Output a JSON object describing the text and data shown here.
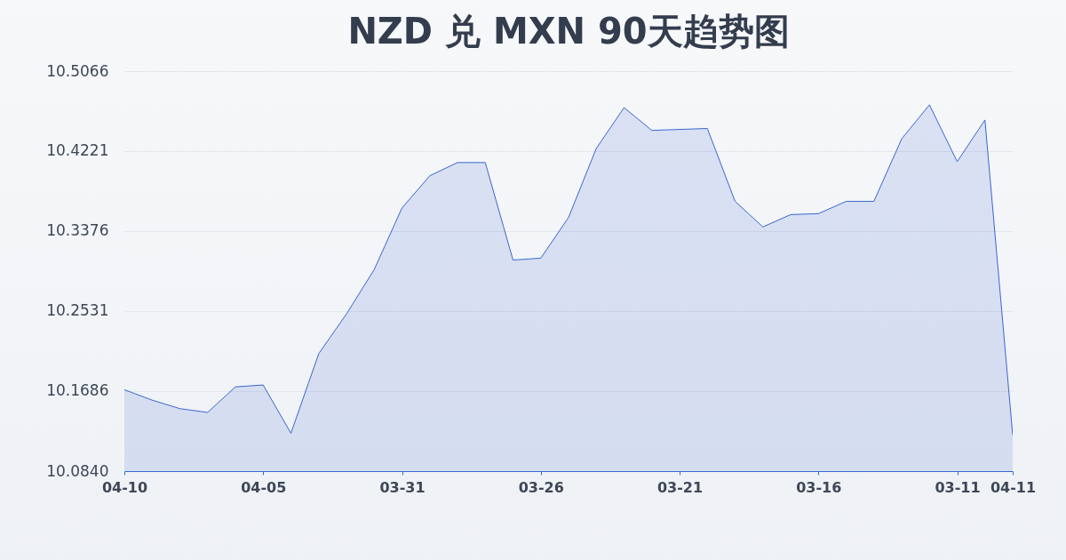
{
  "chart_data": {
    "type": "area",
    "title": "NZD 兑 MXN 90天趋势图",
    "categories": [
      "04-10",
      null,
      null,
      null,
      null,
      "04-05",
      null,
      null,
      null,
      null,
      "03-31",
      null,
      null,
      null,
      null,
      "03-26",
      null,
      null,
      null,
      null,
      "03-21",
      null,
      null,
      null,
      null,
      "03-16",
      null,
      null,
      null,
      null,
      "03-11",
      null,
      "04-11"
    ],
    "series": [
      {
        "color": "#3a66d0",
        "values": [
          10.17,
          10.159,
          10.15,
          10.146,
          10.173,
          10.175,
          10.124,
          10.208,
          10.25,
          10.297,
          10.362,
          10.396,
          10.41,
          10.41,
          10.307,
          10.309,
          10.352,
          10.425,
          10.468,
          10.444,
          10.445,
          10.446,
          10.369,
          10.342,
          10.355,
          10.356,
          10.369,
          10.369,
          10.435,
          10.471,
          10.411,
          10.455,
          10.122
        ]
      }
    ],
    "ylim": [
      10.084,
      10.5066
    ],
    "yticks": [
      {
        "value": 10.084,
        "label": "10.0840"
      },
      10.1686,
      10.2531,
      10.3376,
      10.4221,
      10.5066
    ],
    "grid": "y"
  }
}
